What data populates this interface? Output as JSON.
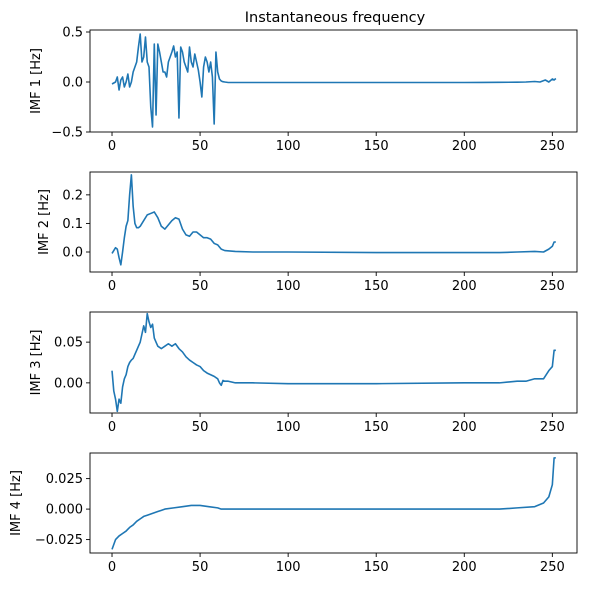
{
  "figure": {
    "title": "Instantaneous frequency"
  },
  "colors": {
    "line": "#1f77b4",
    "axes": "#000000",
    "background": "#ffffff"
  },
  "chart_data": [
    {
      "type": "line",
      "title": "Instantaneous frequency",
      "ylabel": "IMF 1 [Hz]",
      "xlabel": "",
      "xlim": [
        -12.5,
        264
      ],
      "ylim": [
        -0.5,
        0.52
      ],
      "xticks": [
        0,
        50,
        100,
        150,
        200,
        250
      ],
      "yticks": [
        -0.5,
        0.0,
        0.5
      ],
      "ytick_labels": [
        "−0.5",
        "0.0",
        "0.5"
      ],
      "grid": false,
      "series": [
        {
          "x": [
            0,
            1,
            2,
            3,
            4,
            5,
            6,
            7,
            8,
            9,
            10,
            11,
            12,
            13,
            14,
            15,
            16,
            17,
            18,
            19,
            20,
            21,
            22,
            23,
            24,
            25,
            26,
            27,
            28,
            29,
            30,
            31,
            32,
            33,
            34,
            35,
            36,
            37,
            38,
            39,
            40,
            41,
            42,
            43,
            44,
            45,
            46,
            47,
            48,
            49,
            50,
            51,
            52,
            53,
            54,
            55,
            56,
            57,
            58,
            59,
            60,
            61,
            62,
            63,
            64,
            66,
            70,
            80,
            100,
            120,
            140,
            160,
            180,
            200,
            210,
            220,
            230,
            235,
            240,
            243,
            246,
            248,
            250,
            251,
            252
          ],
          "values": [
            -0.02,
            -0.01,
            0.0,
            0.05,
            -0.08,
            0.02,
            0.05,
            -0.05,
            0.0,
            0.08,
            -0.05,
            0.0,
            0.1,
            0.15,
            0.2,
            0.35,
            0.48,
            0.2,
            0.25,
            0.45,
            0.2,
            0.15,
            -0.25,
            -0.45,
            0.38,
            -0.33,
            0.38,
            0.3,
            0.2,
            0.1,
            0.1,
            0.05,
            0.2,
            0.25,
            0.3,
            0.36,
            0.25,
            0.3,
            -0.36,
            0.35,
            0.3,
            0.2,
            0.15,
            0.1,
            0.35,
            0.2,
            0.15,
            0.28,
            0.2,
            0.12,
            0.0,
            -0.15,
            0.15,
            0.25,
            0.2,
            0.1,
            0.2,
            0.05,
            -0.42,
            0.3,
            0.1,
            0.03,
            0.01,
            0.003,
            0.0,
            -0.005,
            -0.005,
            -0.005,
            -0.005,
            -0.005,
            -0.005,
            -0.005,
            -0.005,
            -0.005,
            -0.004,
            -0.003,
            -0.002,
            0.0,
            0.005,
            0.0,
            0.02,
            0.0,
            0.03,
            0.02,
            0.035
          ]
        }
      ]
    },
    {
      "type": "line",
      "ylabel": "IMF 2 [Hz]",
      "xlabel": "",
      "xlim": [
        -12.5,
        264
      ],
      "ylim": [
        -0.07,
        0.28
      ],
      "xticks": [
        0,
        50,
        100,
        150,
        200,
        250
      ],
      "yticks": [
        0.0,
        0.1,
        0.2
      ],
      "ytick_labels": [
        "0.0",
        "0.1",
        "0.2"
      ],
      "grid": false,
      "series": [
        {
          "x": [
            0,
            1,
            2,
            3,
            4,
            5,
            6,
            7,
            8,
            9,
            10,
            11,
            12,
            13,
            14,
            15,
            16,
            18,
            20,
            22,
            24,
            26,
            28,
            30,
            32,
            34,
            36,
            38,
            40,
            42,
            44,
            46,
            48,
            50,
            52,
            54,
            56,
            58,
            60,
            62,
            64,
            70,
            80,
            100,
            150,
            200,
            220,
            230,
            240,
            245,
            248,
            250,
            251,
            252
          ],
          "values": [
            -0.005,
            0.005,
            0.015,
            0.01,
            -0.02,
            -0.045,
            0.0,
            0.05,
            0.09,
            0.11,
            0.2,
            0.27,
            0.16,
            0.1,
            0.085,
            0.085,
            0.09,
            0.11,
            0.13,
            0.135,
            0.14,
            0.12,
            0.09,
            0.08,
            0.095,
            0.11,
            0.12,
            0.115,
            0.08,
            0.06,
            0.055,
            0.07,
            0.07,
            0.06,
            0.05,
            0.05,
            0.045,
            0.03,
            0.025,
            0.01,
            0.005,
            0.002,
            0.0,
            0.0,
            -0.002,
            -0.002,
            -0.002,
            0.0,
            0.002,
            0.0,
            0.01,
            0.02,
            0.035,
            0.035
          ]
        }
      ]
    },
    {
      "type": "line",
      "ylabel": "IMF 3 [Hz]",
      "xlabel": "",
      "xlim": [
        -12.5,
        264
      ],
      "ylim": [
        -0.037,
        0.087
      ],
      "xticks": [
        0,
        50,
        100,
        150,
        200,
        250
      ],
      "yticks": [
        0.0,
        0.05
      ],
      "ytick_labels": [
        "0.00",
        "0.05"
      ],
      "grid": false,
      "series": [
        {
          "x": [
            0,
            1,
            2,
            3,
            4,
            5,
            6,
            7,
            8,
            9,
            10,
            11,
            12,
            13,
            14,
            15,
            16,
            17,
            18,
            19,
            20,
            21,
            22,
            23,
            24,
            25,
            26,
            28,
            30,
            32,
            34,
            36,
            38,
            40,
            42,
            44,
            46,
            48,
            50,
            52,
            54,
            56,
            58,
            60,
            61,
            62,
            63,
            64,
            66,
            70,
            80,
            100,
            150,
            200,
            220,
            230,
            235,
            240,
            245,
            248,
            250,
            251,
            252
          ],
          "values": [
            0.015,
            -0.01,
            -0.02,
            -0.035,
            -0.02,
            -0.025,
            -0.005,
            0.005,
            0.01,
            0.02,
            0.025,
            0.028,
            0.03,
            0.035,
            0.04,
            0.045,
            0.05,
            0.06,
            0.07,
            0.062,
            0.085,
            0.075,
            0.068,
            0.072,
            0.055,
            0.05,
            0.045,
            0.042,
            0.045,
            0.048,
            0.045,
            0.048,
            0.042,
            0.038,
            0.032,
            0.028,
            0.025,
            0.022,
            0.02,
            0.015,
            0.012,
            0.01,
            0.008,
            0.005,
            0.0,
            -0.003,
            0.003,
            0.002,
            0.002,
            0.0,
            0.0,
            -0.001,
            -0.001,
            0.0,
            0.0,
            0.002,
            0.002,
            0.005,
            0.005,
            0.015,
            0.02,
            0.04,
            0.04
          ]
        }
      ]
    },
    {
      "type": "line",
      "ylabel": "IMF 4 [Hz]",
      "xlabel": "",
      "xlim": [
        -12.5,
        264
      ],
      "ylim": [
        -0.036,
        0.046
      ],
      "xticks": [
        0,
        50,
        100,
        150,
        200,
        250
      ],
      "yticks": [
        -0.025,
        0.0,
        0.025
      ],
      "ytick_labels": [
        "−0.025",
        "0.000",
        "0.025"
      ],
      "grid": false,
      "series": [
        {
          "x": [
            0,
            2,
            4,
            6,
            8,
            10,
            12,
            14,
            16,
            18,
            20,
            22,
            24,
            26,
            28,
            30,
            35,
            40,
            45,
            50,
            55,
            60,
            62,
            65,
            70,
            80,
            100,
            150,
            200,
            220,
            230,
            240,
            245,
            248,
            250,
            251,
            252
          ],
          "values": [
            -0.033,
            -0.025,
            -0.022,
            -0.02,
            -0.018,
            -0.015,
            -0.013,
            -0.01,
            -0.008,
            -0.006,
            -0.005,
            -0.004,
            -0.003,
            -0.002,
            -0.001,
            0.0,
            0.001,
            0.002,
            0.003,
            0.003,
            0.002,
            0.001,
            0.0,
            0.0,
            0.0,
            0.0,
            0.0,
            0.0,
            0.0,
            0.0,
            0.001,
            0.002,
            0.005,
            0.01,
            0.02,
            0.042,
            0.042
          ]
        }
      ]
    }
  ]
}
